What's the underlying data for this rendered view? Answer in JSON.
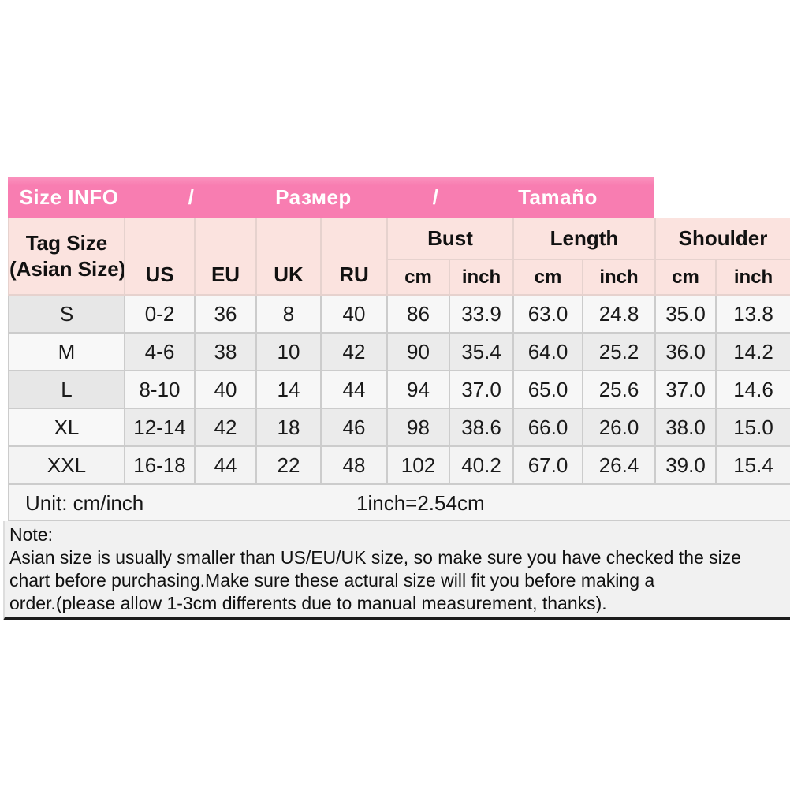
{
  "colors": {
    "banner_pink": "#f87db1",
    "header_pink": "#fbe3df",
    "grid_line": "#cccccc",
    "note_border": "#1c1c1c"
  },
  "banner": {
    "segments": [
      "Size INFO",
      "/",
      "Размер",
      "/",
      "Tamaño"
    ]
  },
  "table": {
    "corner": {
      "line1": "Tag Size",
      "line2": "(Asian Size)"
    },
    "size_columns": [
      "US",
      "EU",
      "UK",
      "RU"
    ],
    "groups": [
      {
        "label": "Bust",
        "sub": [
          "cm",
          "inch"
        ]
      },
      {
        "label": "Length",
        "sub": [
          "cm",
          "inch"
        ]
      },
      {
        "label": "Shoulder",
        "sub": [
          "cm",
          "inch"
        ]
      }
    ],
    "rows": [
      {
        "tag": "S",
        "values": [
          "0-2",
          "36",
          "8",
          "40",
          "86",
          "33.9",
          "63.0",
          "24.8",
          "35.0",
          "13.8"
        ]
      },
      {
        "tag": "M",
        "values": [
          "4-6",
          "38",
          "10",
          "42",
          "90",
          "35.4",
          "64.0",
          "25.2",
          "36.0",
          "14.2"
        ]
      },
      {
        "tag": "L",
        "values": [
          "8-10",
          "40",
          "14",
          "44",
          "94",
          "37.0",
          "65.0",
          "25.6",
          "37.0",
          "14.6"
        ]
      },
      {
        "tag": "XL",
        "values": [
          "12-14",
          "42",
          "18",
          "46",
          "98",
          "38.6",
          "66.0",
          "26.0",
          "38.0",
          "15.0"
        ]
      },
      {
        "tag": "XXL",
        "values": [
          "16-18",
          "44",
          "22",
          "48",
          "102",
          "40.2",
          "67.0",
          "26.4",
          "39.0",
          "15.4"
        ]
      }
    ]
  },
  "unit": {
    "left": "Unit: cm/inch",
    "right": "1inch=2.54cm"
  },
  "note": {
    "heading": "Note:",
    "lines": [
      "Asian size is usually smaller than US/EU/UK size, so make sure you have checked the size",
      "chart before purchasing.Make sure these actural size will fit you before making a",
      "order.(please allow 1-3cm differents due to manual measurement, thanks)."
    ]
  },
  "chart_data": {
    "type": "table",
    "title": "Size INFO / Размер / Tamaño",
    "columns": [
      "Tag Size (Asian Size)",
      "US",
      "EU",
      "UK",
      "RU",
      "Bust cm",
      "Bust inch",
      "Length cm",
      "Length inch",
      "Shoulder cm",
      "Shoulder inch"
    ],
    "rows": [
      [
        "S",
        "0-2",
        "36",
        "8",
        "40",
        "86",
        "33.9",
        "63.0",
        "24.8",
        "35.0",
        "13.8"
      ],
      [
        "M",
        "4-6",
        "38",
        "10",
        "42",
        "90",
        "35.4",
        "64.0",
        "25.2",
        "36.0",
        "14.2"
      ],
      [
        "L",
        "8-10",
        "40",
        "14",
        "44",
        "94",
        "37.0",
        "65.0",
        "25.6",
        "37.0",
        "14.6"
      ],
      [
        "XL",
        "12-14",
        "42",
        "18",
        "46",
        "98",
        "38.6",
        "66.0",
        "26.0",
        "38.0",
        "15.0"
      ],
      [
        "XXL",
        "16-18",
        "44",
        "22",
        "48",
        "102",
        "40.2",
        "67.0",
        "26.4",
        "39.0",
        "15.4"
      ]
    ],
    "footnotes": [
      "Unit: cm/inch",
      "1inch=2.54cm",
      "Note: Asian size is usually smaller than US/EU/UK size, so make sure you have checked the size chart before purchasing.Make sure these actural size will fit you before making a order.(please allow 1-3cm differents due to manual measurement, thanks)."
    ]
  }
}
